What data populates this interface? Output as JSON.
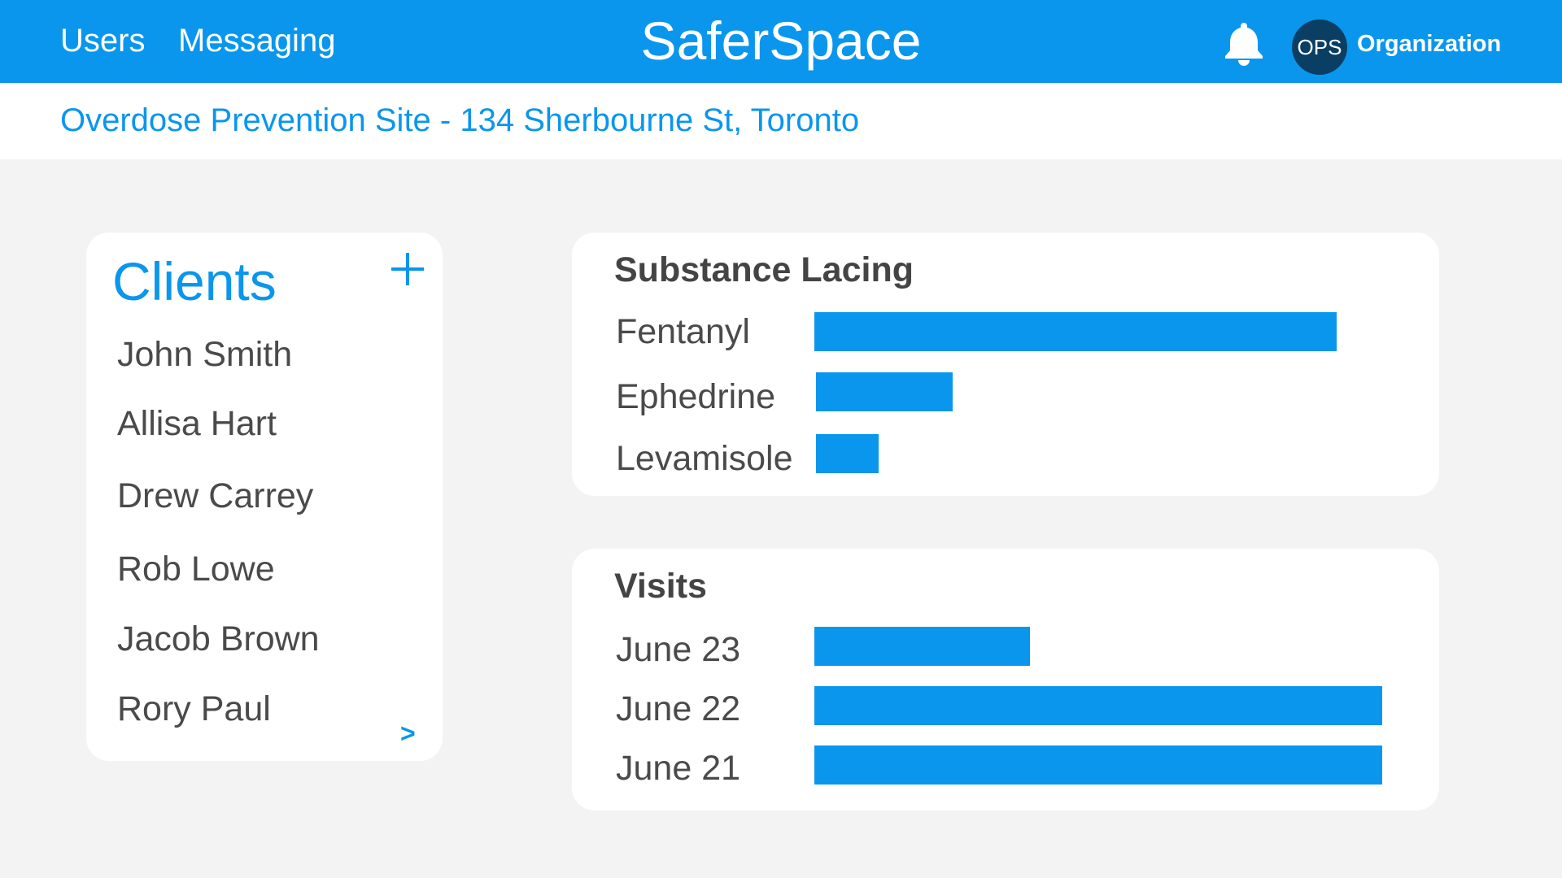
{
  "topbar": {
    "nav_users": "Users",
    "nav_messaging": "Messaging",
    "brand": "SaferSpace",
    "notifications_icon": "bell-icon",
    "avatar_initials": "OPS",
    "org_label": "Organization"
  },
  "location": {
    "title": "Overdose Prevention Site - 134 Sherbourne St, Toronto"
  },
  "clients": {
    "title": "Clients",
    "add_icon": "plus-icon",
    "items": [
      "John Smith",
      "Allisa Hart",
      "Drew Carrey",
      "Rob Lowe",
      "Jacob Brown",
      "Rory Paul"
    ],
    "next_label": ">"
  },
  "colors": {
    "accent": "#0a96ed",
    "avatar_bg": "#0b3e63",
    "background": "#f3f3f3"
  },
  "chart_data": [
    {
      "type": "bar",
      "orientation": "horizontal",
      "title": "Substance Lacing",
      "categories": [
        "Fentanyl",
        "Ephedrine",
        "Levamisole"
      ],
      "values": [
        0.92,
        0.24,
        0.11
      ]
    },
    {
      "type": "bar",
      "orientation": "horizontal",
      "title": "Visits",
      "categories": [
        "June 23",
        "June 22",
        "June 21"
      ],
      "values": [
        0.38,
        1.0,
        1.0
      ]
    }
  ]
}
